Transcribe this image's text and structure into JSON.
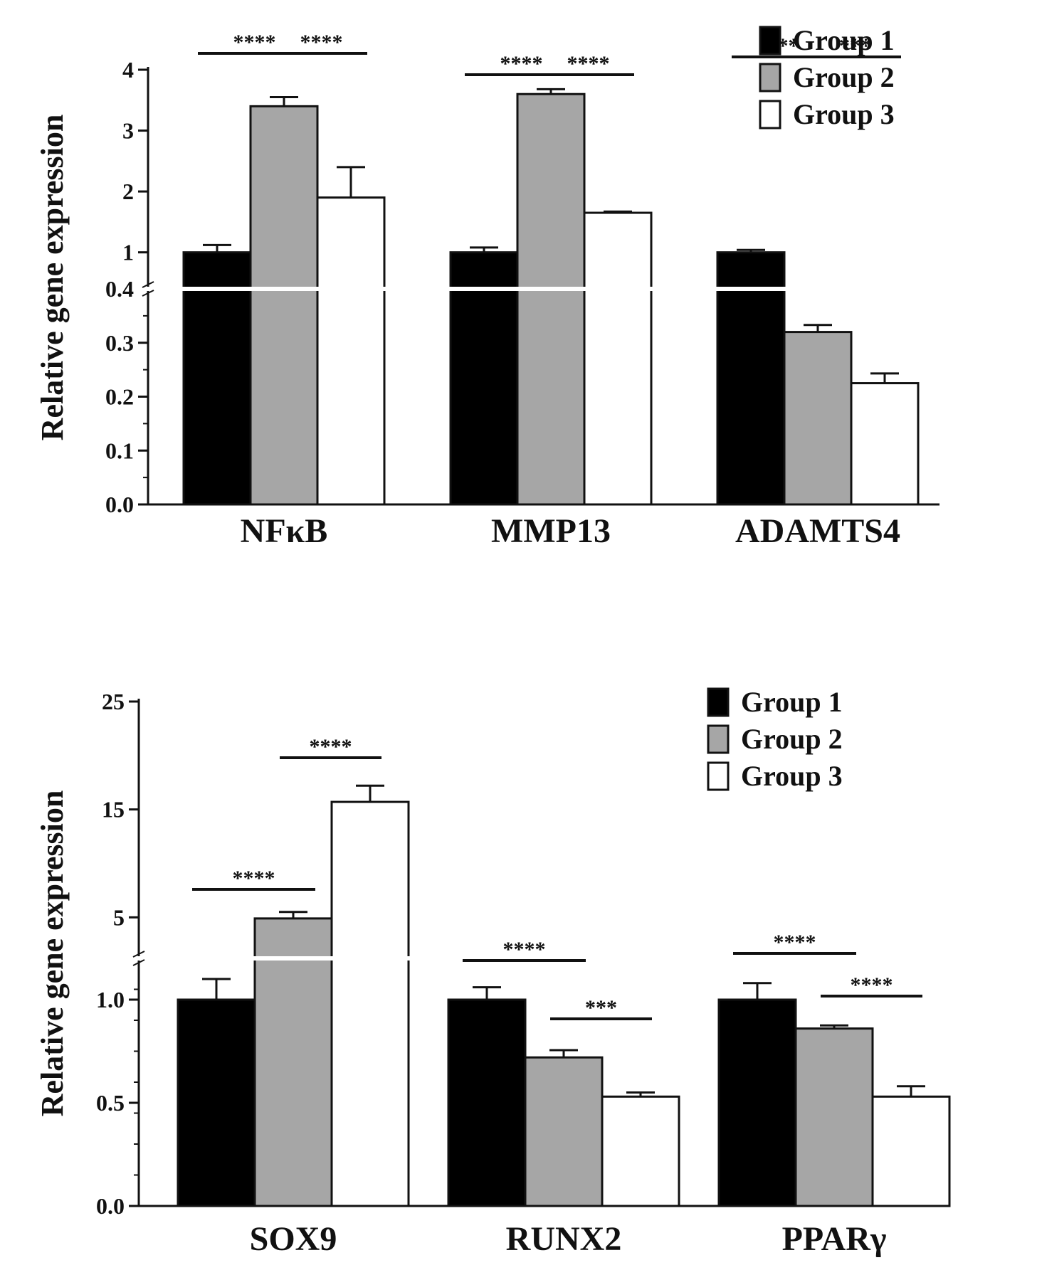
{
  "chart_data": [
    {
      "type": "bar",
      "ylabel": "Relative gene expression",
      "categories": [
        "NFκB",
        "MMP13",
        "ADAMTS4"
      ],
      "series": [
        {
          "name": "Group 1",
          "values": [
            1.0,
            1.0,
            1.0
          ],
          "errors": [
            0.12,
            0.08,
            0.04
          ]
        },
        {
          "name": "Group 2",
          "values": [
            3.4,
            3.6,
            0.32
          ],
          "errors": [
            0.15,
            0.08,
            0.013
          ]
        },
        {
          "name": "Group 3",
          "values": [
            1.9,
            1.65,
            0.225
          ],
          "errors": [
            0.5,
            0.02,
            0.018
          ]
        }
      ],
      "y_axis_broken": true,
      "axis_break": 0.4,
      "lower_ticks": [
        "0.0",
        "0.1",
        "0.2",
        "0.3",
        "0.4"
      ],
      "upper_ticks": [
        "1",
        "2",
        "3",
        "4"
      ],
      "ylim_lower": [
        0,
        0.4
      ],
      "ylim_upper": [
        0.4,
        4
      ],
      "legend": [
        "Group 1",
        "Group 2",
        "Group 3"
      ],
      "legend_position": "top-right",
      "significance": [
        {
          "category": "NFκB",
          "from": "Group 1",
          "to": "Group 2",
          "label": "****"
        },
        {
          "category": "NFκB",
          "from": "Group 2",
          "to": "Group 3",
          "label": "****"
        },
        {
          "category": "MMP13",
          "from": "Group 1",
          "to": "Group 2",
          "label": "****"
        },
        {
          "category": "MMP13",
          "from": "Group 2",
          "to": "Group 3",
          "label": "****"
        },
        {
          "category": "ADAMTS4",
          "from": "Group 1",
          "to": "Group 2",
          "label": "**"
        },
        {
          "category": "ADAMTS4",
          "from": "Group 2",
          "to": "Group 3",
          "label": "***"
        }
      ]
    },
    {
      "type": "bar",
      "ylabel": "Relative gene expression",
      "categories": [
        "SOX9",
        "RUNX2",
        "PPARγ"
      ],
      "series": [
        {
          "name": "Group 1",
          "values": [
            1.0,
            1.0,
            1.0
          ],
          "errors": [
            0.1,
            0.06,
            0.08
          ]
        },
        {
          "name": "Group 2",
          "values": [
            4.9,
            0.72,
            0.86
          ],
          "errors": [
            0.6,
            0.035,
            0.015
          ]
        },
        {
          "name": "Group 3",
          "values": [
            15.7,
            0.53,
            0.53
          ],
          "errors": [
            1.5,
            0.02,
            0.05
          ]
        }
      ],
      "y_axis_broken": true,
      "axis_break": 1.2,
      "lower_ticks": [
        "0.0",
        "0.5",
        "1.0"
      ],
      "upper_ticks": [
        "5",
        "15",
        "25"
      ],
      "ylim_lower": [
        0,
        1.2
      ],
      "ylim_upper": [
        1.2,
        25
      ],
      "legend": [
        "Group 1",
        "Group 2",
        "Group 3"
      ],
      "legend_position": "top-right",
      "significance": [
        {
          "category": "SOX9",
          "from": "Group 1",
          "to": "Group 2",
          "label": "****"
        },
        {
          "category": "SOX9",
          "from": "Group 2",
          "to": "Group 3",
          "label": "****"
        },
        {
          "category": "RUNX2",
          "from": "Group 1",
          "to": "Group 2",
          "label": "****"
        },
        {
          "category": "RUNX2",
          "from": "Group 2",
          "to": "Group 3",
          "label": "***"
        },
        {
          "category": "PPARγ",
          "from": "Group 1",
          "to": "Group 2",
          "label": "****"
        },
        {
          "category": "PPARγ",
          "from": "Group 2",
          "to": "Group 3",
          "label": "****"
        }
      ]
    }
  ],
  "colors": {
    "group1": "#000000",
    "group2": "#a6a6a6",
    "group3": "#ffffff",
    "axis": "#111111"
  }
}
